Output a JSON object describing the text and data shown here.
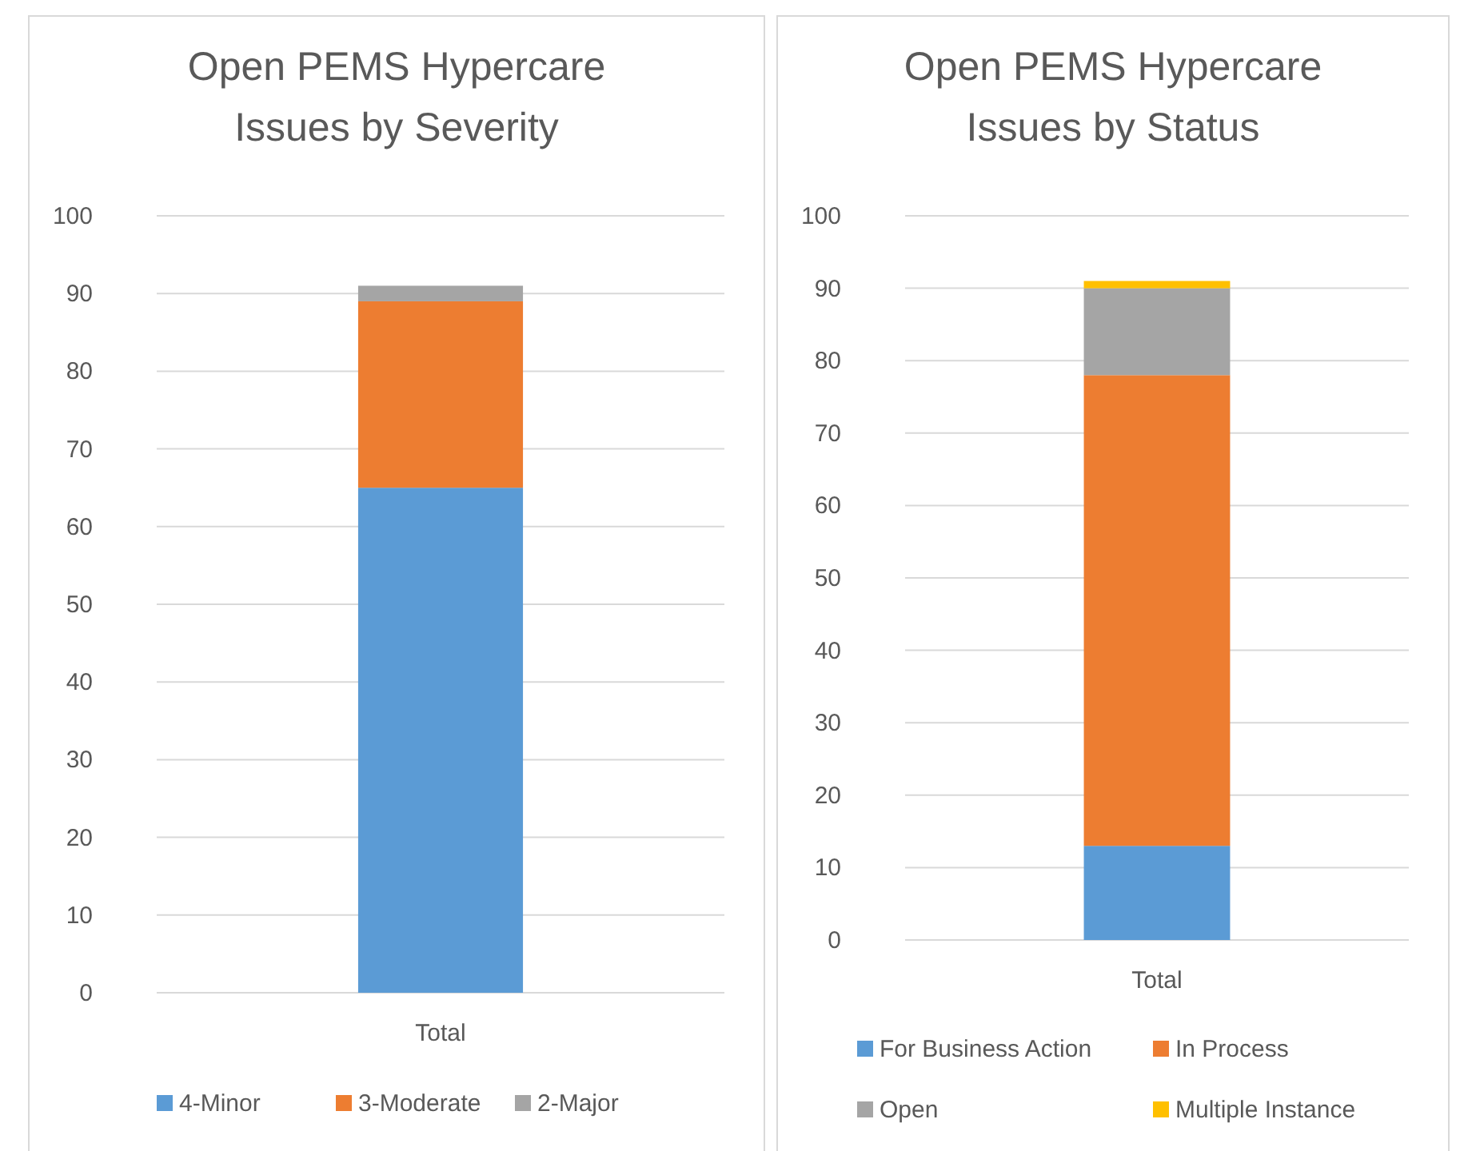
{
  "chart_data": [
    {
      "type": "bar",
      "stacked": true,
      "title": "Open PEMS Hypercare Issues by Severity",
      "categories": [
        "Total"
      ],
      "series": [
        {
          "name": "4-Minor",
          "color": "#5b9bd5",
          "values": [
            65
          ]
        },
        {
          "name": "3-Moderate",
          "color": "#ed7d31",
          "values": [
            24
          ]
        },
        {
          "name": "2-Major",
          "color": "#a5a5a5",
          "values": [
            2
          ]
        }
      ],
      "ylim": [
        0,
        100
      ],
      "yticks": [
        0,
        10,
        20,
        30,
        40,
        50,
        60,
        70,
        80,
        90,
        100
      ],
      "grid": "y",
      "legend": "bottom"
    },
    {
      "type": "bar",
      "stacked": true,
      "title": "Open PEMS Hypercare Issues by Status",
      "categories": [
        "Total"
      ],
      "series": [
        {
          "name": "For Business Action",
          "color": "#5b9bd5",
          "values": [
            13
          ]
        },
        {
          "name": "In Process",
          "color": "#ed7d31",
          "values": [
            65
          ]
        },
        {
          "name": "Open",
          "color": "#a5a5a5",
          "values": [
            12
          ]
        },
        {
          "name": "Multiple Instance",
          "color": "#ffc000",
          "values": [
            1
          ]
        }
      ],
      "ylim": [
        0,
        100
      ],
      "yticks": [
        0,
        10,
        20,
        30,
        40,
        50,
        60,
        70,
        80,
        90,
        100
      ],
      "grid": "y",
      "legend": "bottom"
    }
  ]
}
